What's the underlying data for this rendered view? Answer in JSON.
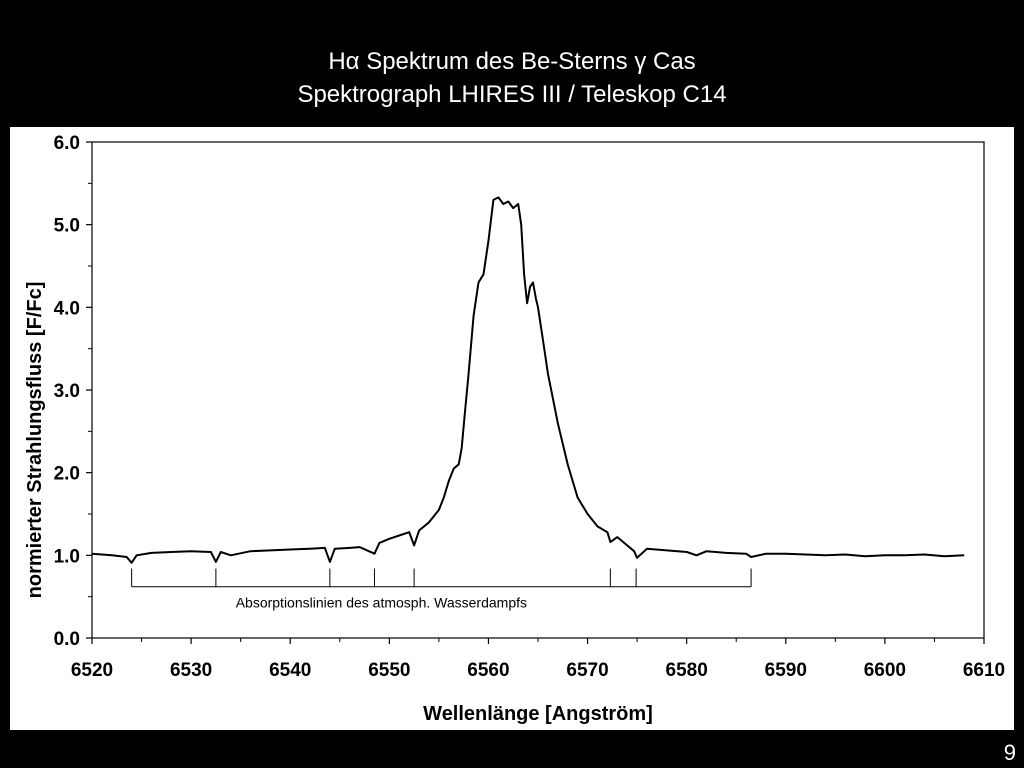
{
  "slide": {
    "title_line1": "Hα Spektrum des Be-Sterns γ Cas",
    "title_line2": "Spektrograph LHIRES III / Teleskop C14",
    "page_number": "9"
  },
  "colors": {
    "background": "#000000",
    "panel": "#ffffff",
    "line": "#000000",
    "title_text": "#ffffff"
  },
  "chart_data": {
    "type": "line",
    "title": "",
    "xlabel": "Wellenlänge [Angström]",
    "ylabel": "normierter Strahlungsfluss [F/Fc]",
    "xlim": [
      6520,
      6610
    ],
    "ylim": [
      0.0,
      6.0
    ],
    "x_ticks": [
      6520,
      6530,
      6540,
      6550,
      6560,
      6570,
      6580,
      6590,
      6600,
      6610
    ],
    "y_ticks": [
      "0.0",
      "1.0",
      "2.0",
      "3.0",
      "4.0",
      "5.0",
      "6.0"
    ],
    "y_tick_values": [
      0,
      1,
      2,
      3,
      4,
      5,
      6
    ],
    "grid": false,
    "series": [
      {
        "x": [
          6520,
          6522,
          6523.5,
          6524,
          6524.5,
          6526,
          6528,
          6530,
          6532,
          6532.5,
          6533,
          6534,
          6536,
          6538,
          6540,
          6542,
          6543.5,
          6544,
          6544.5,
          6546,
          6547,
          6548.5,
          6549,
          6550,
          6551,
          6552,
          6552.5,
          6553,
          6554,
          6555,
          6555.5,
          6556,
          6556.5,
          6557,
          6557.3,
          6557.6,
          6558,
          6558.5,
          6559,
          6559.5,
          6560,
          6560.5,
          6561,
          6561.5,
          6562,
          6562.5,
          6563,
          6563.3,
          6563.6,
          6563.9,
          6564.2,
          6564.5,
          6564.8,
          6565,
          6565.5,
          6566,
          6567,
          6568,
          6569,
          6570,
          6571,
          6572,
          6572.3,
          6573,
          6574,
          6574.7,
          6575,
          6576,
          6578,
          6580,
          6581,
          6582,
          6584,
          6586,
          6586.5,
          6588,
          6590,
          6592,
          6594,
          6596,
          6598,
          6600,
          6602,
          6604,
          6606,
          6608
        ],
        "values": [
          1.02,
          1.0,
          0.98,
          0.91,
          1.0,
          1.03,
          1.04,
          1.05,
          1.04,
          0.92,
          1.04,
          1.0,
          1.05,
          1.06,
          1.07,
          1.08,
          1.09,
          0.92,
          1.08,
          1.09,
          1.1,
          1.02,
          1.15,
          1.2,
          1.24,
          1.28,
          1.12,
          1.3,
          1.4,
          1.55,
          1.7,
          1.9,
          2.05,
          2.1,
          2.3,
          2.7,
          3.2,
          3.9,
          4.3,
          4.4,
          4.8,
          5.3,
          5.33,
          5.25,
          5.28,
          5.2,
          5.25,
          5.0,
          4.4,
          4.05,
          4.25,
          4.3,
          4.1,
          4.0,
          3.6,
          3.2,
          2.6,
          2.1,
          1.7,
          1.5,
          1.35,
          1.28,
          1.16,
          1.22,
          1.12,
          1.05,
          0.97,
          1.08,
          1.06,
          1.04,
          1.0,
          1.05,
          1.03,
          1.02,
          0.98,
          1.02,
          1.02,
          1.01,
          1.0,
          1.01,
          0.99,
          1.0,
          1.0,
          1.01,
          0.99,
          1.0
        ]
      }
    ],
    "annotation": {
      "text": "Absorptionslinien des atmosph. Wasserdampfs",
      "line_positions": [
        6524,
        6532.5,
        6544,
        6548.5,
        6552.5,
        6572.3,
        6574.9,
        6586.5
      ],
      "y_top": 0.84,
      "y_bottom": 0.62
    }
  }
}
